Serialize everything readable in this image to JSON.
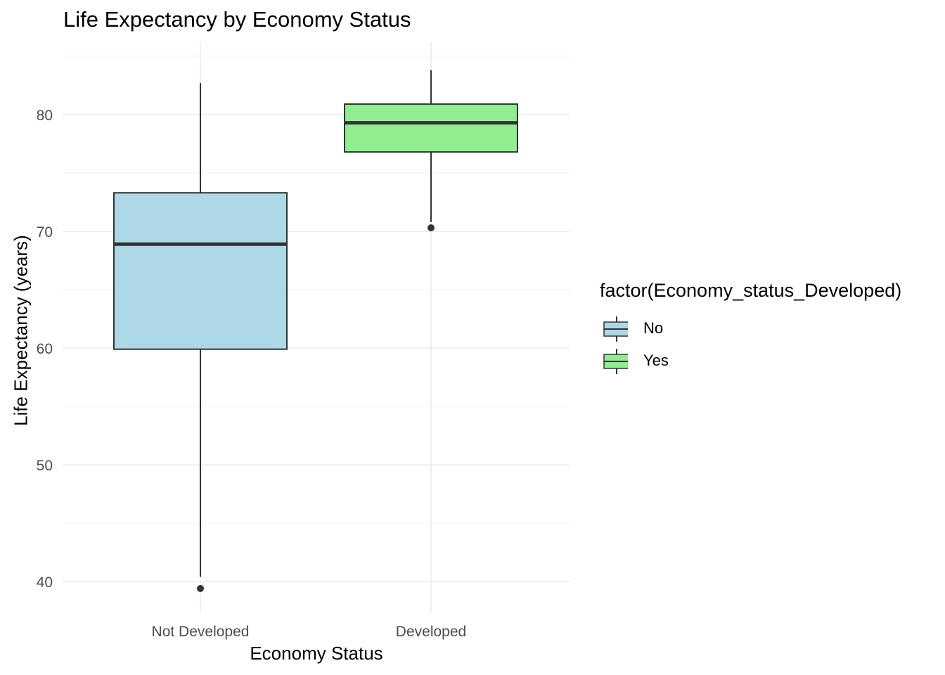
{
  "chart_data": {
    "type": "boxplot",
    "title": "Life Expectancy by Economy Status",
    "xlabel": "Economy Status",
    "ylabel": "Life Expectancy (years)",
    "ylim": [
      37,
      85
    ],
    "y_ticks": [
      40,
      50,
      60,
      70,
      80
    ],
    "grid": true,
    "categories": [
      "Not Developed",
      "Developed"
    ],
    "boxes": [
      {
        "category": "Not Developed",
        "group": "No",
        "whisker_low": 40.4,
        "q1": 59.9,
        "median": 68.9,
        "q3": 73.3,
        "whisker_high": 82.7,
        "outliers": [
          39.4
        ],
        "color": "#add8e6"
      },
      {
        "category": "Developed",
        "group": "Yes",
        "whisker_low": 70.8,
        "q1": 76.8,
        "median": 79.3,
        "q3": 80.9,
        "whisker_high": 83.8,
        "outliers": [
          70.3
        ],
        "color": "#90ee90"
      }
    ],
    "legend": {
      "title": "factor(Economy_status_Developed)",
      "position": "right",
      "entries": [
        {
          "label": "No",
          "color": "#add8e6"
        },
        {
          "label": "Yes",
          "color": "#90ee90"
        }
      ]
    }
  }
}
